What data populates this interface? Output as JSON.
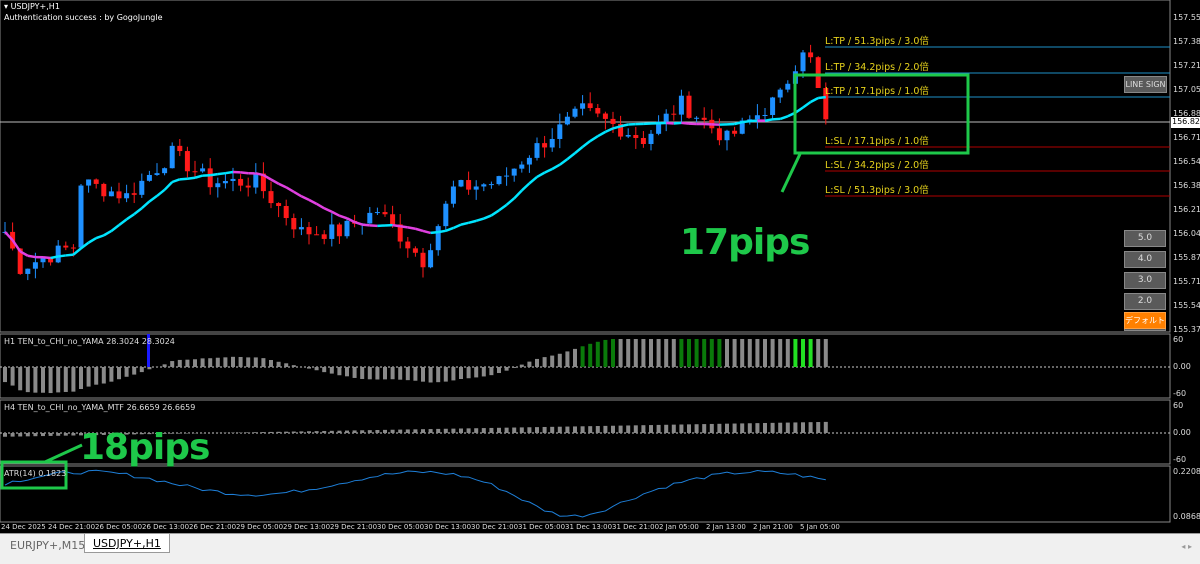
{
  "window": {
    "symbol_title": "USDJPY+,H1",
    "auth_text": "Authentication success : by GogoJungle"
  },
  "price_axis": {
    "labels": [
      "157.550",
      "157.385",
      "157.215",
      "157.050",
      "156.880",
      "156.715",
      "156.545",
      "156.380",
      "156.210",
      "156.045",
      "155.875",
      "155.710",
      "155.540",
      "155.375"
    ],
    "current_price": "156.821"
  },
  "levels": [
    {
      "label": "L:TP / 51.3pips / 3.0倍",
      "type": "tp",
      "color": "#1e90c8"
    },
    {
      "label": "L:TP / 34.2pips / 2.0倍",
      "type": "tp",
      "color": "#1e90c8"
    },
    {
      "label": "L:TP / 17.1pips / 1.0倍",
      "type": "tp",
      "color": "#1e90c8"
    },
    {
      "label": "L:SL / 17.1pips / 1.0倍",
      "type": "sl",
      "color": "#b00000"
    },
    {
      "label": "L:SL / 34.2pips / 2.0倍",
      "type": "sl",
      "color": "#b00000"
    },
    {
      "label": "L:SL / 51.3pips / 3.0倍",
      "type": "sl",
      "color": "#b00000"
    }
  ],
  "buttons": {
    "line_sign": "LINE SIGN",
    "multipliers": [
      "5.0",
      "4.0",
      "3.0",
      "2.0",
      "1.0"
    ],
    "default": "デフォルト"
  },
  "annotations": {
    "main": "17pips",
    "atr": "18pips",
    "color": "#1ec84a"
  },
  "indicators": [
    {
      "title": "H1  TEN_to_CHI_no_YAMA  28.3024 28.3024",
      "axis": [
        "60",
        "0.00",
        "-60"
      ]
    },
    {
      "title": "H4  TEN_to_CHI_no_YAMA_MTF  26.6659 26.6659",
      "axis": [
        "60",
        "0.00",
        "-60"
      ]
    },
    {
      "title": "ATR(14) 0.1823",
      "axis": [
        "0.2208",
        "0.0868"
      ]
    }
  ],
  "time_axis": [
    "24 Dec 2025",
    "24 Dec 21:00",
    "26 Dec 05:00",
    "26 Dec 13:00",
    "26 Dec 21:00",
    "29 Dec 05:00",
    "29 Dec 13:00",
    "29 Dec 21:00",
    "30 Dec 05:00",
    "30 Dec 13:00",
    "30 Dec 21:00",
    "31 Dec 05:00",
    "31 Dec 13:00",
    "31 Dec 21:00",
    "2 Jan 05:00",
    "2 Jan 13:00",
    "2 Jan 21:00",
    "5 Jan 05:00"
  ],
  "tabs": [
    {
      "label": "EURJPY+,M15",
      "active": false
    },
    {
      "label": "USDJPY+,H1",
      "active": true
    }
  ],
  "chart_data": {
    "type": "candlestick",
    "price_anchors": [
      [
        0,
        156.05
      ],
      [
        2,
        155.8
      ],
      [
        9,
        155.95
      ],
      [
        10,
        156.4
      ],
      [
        16,
        156.3
      ],
      [
        22,
        156.6
      ],
      [
        27,
        156.4
      ],
      [
        33,
        156.4
      ],
      [
        39,
        156.05
      ],
      [
        44,
        156.05
      ],
      [
        49,
        156.2
      ],
      [
        55,
        155.85
      ],
      [
        59,
        156.35
      ],
      [
        65,
        156.4
      ],
      [
        69,
        156.6
      ],
      [
        76,
        156.9
      ],
      [
        80,
        156.8
      ],
      [
        84,
        156.7
      ],
      [
        89,
        156.95
      ],
      [
        95,
        156.7
      ],
      [
        102,
        157.0
      ],
      [
        105,
        157.35
      ],
      [
        106,
        157.25
      ],
      [
        108,
        156.82
      ]
    ],
    "colors": {
      "up": "#1e90ff",
      "down": "#ff1a1a",
      "ma_up": "#00e5ff",
      "ma_down": "#e040e0"
    }
  }
}
